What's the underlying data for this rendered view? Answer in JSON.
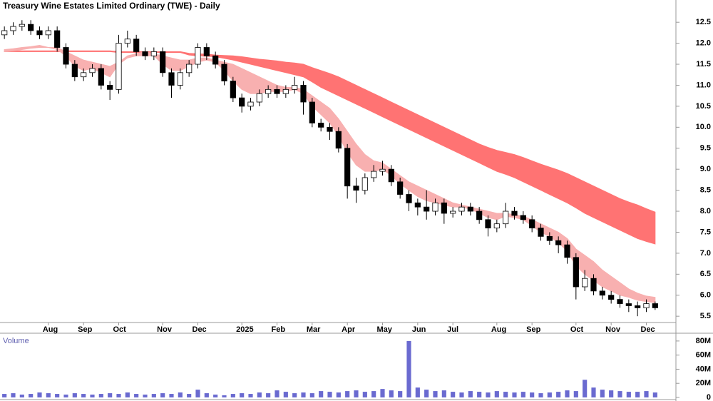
{
  "chart_data": {
    "type": "candlestick",
    "title": "Treasury Wine Estates Limited Ordinary (TWE) - Daily",
    "categories": [
      null,
      null,
      null,
      null,
      null,
      "Aug",
      null,
      null,
      null,
      "Sep",
      null,
      null,
      null,
      "Oct",
      null,
      null,
      null,
      null,
      "Nov",
      null,
      null,
      null,
      "Dec",
      null,
      null,
      null,
      null,
      "2025",
      null,
      null,
      null,
      "Feb",
      null,
      null,
      null,
      "Mar",
      null,
      null,
      null,
      "Apr",
      null,
      null,
      null,
      "May",
      null,
      null,
      null,
      "Jun",
      null,
      null,
      null,
      "Jul",
      null,
      null,
      null,
      null,
      "Aug",
      null,
      null,
      null,
      "Sep",
      null,
      null,
      null,
      null,
      "Oct",
      null,
      null,
      null,
      "Nov",
      null,
      null,
      null,
      "Dec",
      null
    ],
    "open": [
      12.2,
      12.3,
      12.4,
      12.45,
      12.3,
      12.2,
      12.3,
      11.9,
      11.5,
      11.2,
      11.3,
      11.4,
      11.0,
      10.9,
      12.0,
      12.1,
      11.8,
      11.7,
      11.8,
      11.3,
      11.0,
      11.3,
      11.5,
      11.9,
      11.7,
      11.5,
      11.1,
      10.7,
      10.5,
      10.6,
      10.8,
      10.9,
      10.8,
      10.9,
      11.0,
      10.6,
      10.1,
      10.0,
      9.9,
      9.5,
      8.6,
      8.5,
      8.8,
      8.95,
      9.0,
      8.7,
      8.4,
      8.2,
      8.1,
      8.0,
      8.2,
      7.95,
      8.0,
      8.1,
      8.0,
      7.8,
      7.6,
      7.7,
      8.0,
      7.9,
      7.8,
      7.6,
      7.4,
      7.3,
      7.2,
      6.9,
      6.2,
      6.4,
      6.1,
      6.0,
      5.9,
      5.8,
      5.75,
      5.7,
      5.8
    ],
    "high": [
      12.4,
      12.5,
      12.55,
      12.55,
      12.4,
      12.4,
      12.4,
      12.0,
      11.6,
      11.4,
      11.5,
      11.5,
      11.1,
      12.2,
      12.3,
      12.2,
      11.9,
      11.9,
      11.9,
      11.4,
      11.4,
      11.6,
      12.0,
      12.0,
      11.8,
      11.6,
      11.2,
      10.8,
      10.7,
      10.9,
      11.0,
      11.0,
      11.0,
      11.2,
      11.1,
      10.7,
      10.2,
      10.1,
      10.0,
      9.6,
      8.8,
      8.9,
      9.1,
      9.2,
      9.1,
      8.8,
      8.5,
      8.3,
      8.5,
      8.3,
      8.3,
      8.1,
      8.2,
      8.2,
      8.1,
      7.9,
      7.8,
      8.2,
      8.1,
      8.0,
      7.9,
      7.7,
      7.5,
      7.4,
      7.3,
      7.0,
      6.6,
      6.5,
      6.2,
      6.1,
      6.0,
      5.9,
      5.85,
      5.9,
      5.85
    ],
    "low": [
      12.1,
      12.2,
      12.3,
      12.2,
      12.1,
      12.1,
      11.8,
      11.4,
      11.1,
      11.1,
      11.2,
      10.9,
      10.65,
      10.8,
      11.9,
      11.7,
      11.6,
      11.6,
      11.2,
      10.7,
      10.9,
      11.2,
      11.4,
      11.6,
      11.4,
      11.0,
      10.6,
      10.35,
      10.4,
      10.5,
      10.7,
      10.7,
      10.7,
      10.8,
      10.3,
      10.0,
      9.9,
      9.7,
      9.4,
      8.3,
      8.2,
      8.4,
      8.7,
      8.85,
      8.6,
      8.3,
      8.0,
      7.9,
      7.8,
      7.9,
      7.7,
      7.85,
      7.9,
      7.9,
      7.7,
      7.4,
      7.5,
      7.6,
      7.8,
      7.7,
      7.5,
      7.3,
      7.2,
      7.0,
      6.75,
      5.9,
      6.1,
      6.0,
      5.9,
      5.8,
      5.7,
      5.6,
      5.5,
      5.6,
      5.65
    ],
    "close": [
      12.3,
      12.4,
      12.45,
      12.3,
      12.2,
      12.3,
      11.9,
      11.5,
      11.2,
      11.3,
      11.4,
      11.0,
      10.9,
      12.0,
      12.1,
      11.8,
      11.7,
      11.8,
      11.3,
      11.0,
      11.3,
      11.5,
      11.9,
      11.7,
      11.5,
      11.1,
      10.7,
      10.5,
      10.6,
      10.8,
      10.9,
      10.8,
      10.9,
      11.0,
      10.6,
      10.1,
      10.0,
      9.9,
      9.5,
      8.6,
      8.5,
      8.8,
      8.95,
      9.0,
      8.7,
      8.4,
      8.2,
      8.1,
      8.0,
      8.2,
      7.95,
      8.0,
      8.1,
      8.0,
      7.8,
      7.6,
      7.7,
      8.0,
      7.9,
      7.8,
      7.6,
      7.4,
      7.3,
      7.2,
      6.9,
      6.2,
      6.4,
      6.1,
      6.0,
      5.9,
      5.8,
      5.75,
      5.7,
      5.8,
      5.7
    ],
    "bands": [
      {
        "color": "#ff7373",
        "upper": [
          11.82,
          11.82,
          11.82,
          11.82,
          11.82,
          11.82,
          11.82,
          11.82,
          11.82,
          11.82,
          11.82,
          11.82,
          11.82,
          11.8,
          11.8,
          11.8,
          11.8,
          11.8,
          11.8,
          11.8,
          11.8,
          11.76,
          11.75,
          11.74,
          11.72,
          11.71,
          11.7,
          11.68,
          11.65,
          11.62,
          11.6,
          11.58,
          11.55,
          11.53,
          11.5,
          11.42,
          11.35,
          11.28,
          11.2,
          11.1,
          11.0,
          10.9,
          10.8,
          10.7,
          10.6,
          10.5,
          10.4,
          10.3,
          10.2,
          10.1,
          10.0,
          9.9,
          9.8,
          9.7,
          9.6,
          9.52,
          9.45,
          9.4,
          9.35,
          9.28,
          9.2,
          9.12,
          9.05,
          8.98,
          8.9,
          8.8,
          8.7,
          8.6,
          8.5,
          8.4,
          8.3,
          8.22,
          8.15,
          8.06,
          7.98
        ],
        "lower": [
          11.8,
          11.8,
          11.8,
          11.8,
          11.8,
          11.8,
          11.8,
          11.8,
          11.8,
          11.8,
          11.8,
          11.8,
          11.8,
          11.78,
          11.78,
          11.78,
          11.78,
          11.78,
          11.78,
          11.78,
          11.78,
          11.72,
          11.7,
          11.69,
          11.68,
          11.64,
          11.6,
          11.55,
          11.5,
          11.45,
          11.4,
          11.35,
          11.3,
          11.25,
          11.2,
          11.08,
          10.95,
          10.85,
          10.75,
          10.65,
          10.55,
          10.45,
          10.35,
          10.25,
          10.15,
          10.05,
          9.95,
          9.85,
          9.75,
          9.65,
          9.55,
          9.45,
          9.35,
          9.25,
          9.15,
          9.05,
          8.95,
          8.88,
          8.8,
          8.7,
          8.6,
          8.5,
          8.4,
          8.3,
          8.2,
          8.08,
          7.95,
          7.85,
          7.75,
          7.65,
          7.55,
          7.45,
          7.35,
          7.28,
          7.22
        ]
      },
      {
        "color": "#f8b0b0",
        "upper": [
          11.85,
          11.87,
          11.9,
          11.92,
          11.95,
          11.9,
          11.9,
          11.8,
          11.7,
          11.6,
          11.55,
          11.5,
          11.45,
          11.55,
          11.7,
          11.75,
          11.8,
          11.75,
          11.7,
          11.65,
          11.6,
          11.6,
          11.65,
          11.65,
          11.6,
          11.55,
          11.5,
          11.4,
          11.3,
          11.2,
          11.1,
          11.0,
          10.95,
          10.95,
          10.9,
          10.75,
          10.6,
          10.45,
          10.2,
          9.9,
          9.6,
          9.35,
          9.2,
          9.15,
          9.0,
          8.85,
          8.7,
          8.6,
          8.5,
          8.4,
          8.3,
          8.2,
          8.15,
          8.1,
          8.05,
          8.0,
          7.95,
          7.95,
          7.92,
          7.88,
          7.8,
          7.7,
          7.6,
          7.5,
          7.35,
          7.1,
          6.95,
          6.8,
          6.6,
          6.45,
          6.3,
          6.15,
          6.05,
          5.98,
          5.95
        ],
        "lower": [
          11.8,
          11.82,
          11.85,
          11.88,
          11.9,
          11.9,
          11.85,
          11.7,
          11.45,
          11.35,
          11.4,
          11.3,
          11.2,
          11.5,
          11.65,
          11.7,
          11.7,
          11.7,
          11.5,
          11.35,
          11.35,
          11.45,
          11.55,
          11.6,
          11.55,
          11.35,
          11.1,
          10.9,
          10.8,
          10.8,
          10.85,
          10.85,
          10.85,
          10.9,
          10.8,
          10.5,
          10.3,
          10.1,
          9.8,
          9.4,
          9.1,
          8.95,
          8.95,
          9.0,
          8.85,
          8.65,
          8.5,
          8.35,
          8.25,
          8.2,
          8.15,
          8.1,
          8.1,
          8.05,
          7.95,
          7.85,
          7.8,
          7.88,
          7.85,
          7.8,
          7.65,
          7.5,
          7.4,
          7.25,
          7.05,
          6.7,
          6.5,
          6.35,
          6.2,
          6.1,
          6.0,
          5.95,
          5.88,
          5.85,
          5.82
        ]
      }
    ],
    "ylim": [
      5.35,
      13.03
    ],
    "yticks": [
      5.5,
      {
        "value": 6,
        "label": "6.0"
      },
      6.5,
      {
        "value": 7,
        "label": "7.0"
      },
      7.5,
      {
        "value": 8,
        "label": "8.0"
      },
      8.5,
      {
        "value": 9,
        "label": "9.0"
      },
      9.5,
      {
        "value": 10,
        "label": "10.0"
      },
      10.5,
      {
        "value": 11,
        "label": "11.0"
      },
      11.5,
      {
        "value": 12,
        "label": "12.0"
      },
      12.5
    ],
    "volume": {
      "label": "Volume",
      "color": "#6a6ad0",
      "values": [
        5000000,
        6000000,
        4000000,
        5000000,
        7000000,
        6000000,
        5000000,
        4000000,
        6000000,
        5000000,
        4000000,
        5000000,
        6000000,
        5000000,
        7000000,
        5000000,
        4000000,
        5000000,
        6000000,
        5000000,
        7000000,
        5000000,
        11000000,
        6000000,
        4000000,
        3000000,
        5000000,
        6000000,
        5000000,
        7000000,
        6000000,
        10000000,
        8000000,
        6000000,
        7000000,
        6000000,
        9000000,
        8000000,
        7000000,
        9000000,
        10000000,
        8000000,
        9000000,
        12000000,
        10000000,
        9000000,
        80000000,
        14000000,
        11000000,
        9000000,
        10000000,
        8000000,
        7000000,
        9000000,
        8000000,
        7000000,
        9000000,
        8000000,
        7000000,
        8000000,
        7000000,
        6000000,
        7000000,
        8000000,
        10000000,
        9000000,
        25000000,
        14000000,
        11000000,
        10000000,
        9000000,
        8000000,
        8000000,
        9000000,
        7000000
      ],
      "ylim": [
        0,
        90000000
      ],
      "yticks": [
        0,
        {
          "value": 20000000,
          "label": "20M"
        },
        {
          "value": 40000000,
          "label": "40M"
        },
        {
          "value": 60000000,
          "label": "60M"
        },
        {
          "value": 80000000,
          "label": "80M"
        }
      ]
    }
  }
}
